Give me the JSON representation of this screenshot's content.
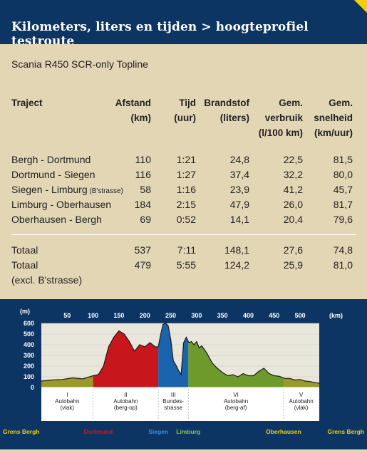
{
  "header": {
    "title": "Kilometers, liters en tijden > hoogteprofiel testroute"
  },
  "subtitle": "Scania R450 SCR-only Topline",
  "table": {
    "columns": [
      {
        "lines": [
          "Traject"
        ]
      },
      {
        "lines": [
          "Afstand",
          "(km)"
        ]
      },
      {
        "lines": [
          "Tijd",
          "(uur)"
        ]
      },
      {
        "lines": [
          "Brandstof",
          "(liters)"
        ]
      },
      {
        "lines": [
          "Gem.",
          "verbruik",
          "(l/100 km)"
        ]
      },
      {
        "lines": [
          "Gem.",
          "snelheid",
          "(km/uur)"
        ]
      }
    ],
    "rows": [
      {
        "name": "Bergh - Dortmund",
        "note": "",
        "afstand": "110",
        "tijd": "1:21",
        "brandstof": "24,8",
        "verbruik": "22,5",
        "snelheid": "81,5"
      },
      {
        "name": "Dortmund - Siegen",
        "note": "",
        "afstand": "116",
        "tijd": "1:27",
        "brandstof": "37,4",
        "verbruik": "32,2",
        "snelheid": "80,0"
      },
      {
        "name": "Siegen - Limburg",
        "note": "(B'strasse)",
        "afstand": "58",
        "tijd": "1:16",
        "brandstof": "23,9",
        "verbruik": "41,2",
        "snelheid": "45,7"
      },
      {
        "name": "Limburg - Oberhausen",
        "note": "",
        "afstand": "184",
        "tijd": "2:15",
        "brandstof": "47,9",
        "verbruik": "26,0",
        "snelheid": "81,7"
      },
      {
        "name": "Oberhausen - Bergh",
        "note": "",
        "afstand": "69",
        "tijd": "0:52",
        "brandstof": "14,1",
        "verbruik": "20,4",
        "snelheid": "79,6"
      }
    ],
    "totals": [
      {
        "name": "Totaal",
        "afstand": "537",
        "tijd": "7:11",
        "brandstof": "148,1",
        "verbruik": "27,6",
        "snelheid": "74,8"
      },
      {
        "name": "Totaal",
        "name2": "(excl. B'strasse)",
        "afstand": "479",
        "tijd": "5:55",
        "brandstof": "124,2",
        "verbruik": "25,9",
        "snelheid": "81,0"
      }
    ]
  },
  "chart_data": {
    "type": "area",
    "ylabel": "(m)",
    "xlabel": "(km)",
    "xlim": [
      0,
      537
    ],
    "ylim": [
      0,
      600
    ],
    "x_ticks": [
      50,
      100,
      150,
      200,
      250,
      300,
      350,
      400,
      450,
      500
    ],
    "y_ticks": [
      0,
      100,
      200,
      300,
      400,
      500,
      600
    ],
    "profile": {
      "x": [
        0,
        20,
        40,
        60,
        80,
        100,
        110,
        120,
        130,
        140,
        150,
        160,
        170,
        180,
        190,
        200,
        210,
        220,
        226,
        230,
        235,
        240,
        245,
        250,
        255,
        260,
        265,
        270,
        275,
        280,
        285,
        290,
        295,
        300,
        305,
        310,
        320,
        330,
        340,
        350,
        360,
        370,
        380,
        390,
        400,
        410,
        420,
        430,
        440,
        450,
        460,
        470,
        480,
        490,
        500,
        510,
        520,
        530,
        537
      ],
      "y": [
        60,
        70,
        75,
        90,
        80,
        110,
        120,
        200,
        380,
        470,
        530,
        500,
        430,
        340,
        400,
        380,
        420,
        380,
        380,
        480,
        590,
        600,
        580,
        450,
        250,
        210,
        160,
        120,
        420,
        470,
        420,
        430,
        400,
        430,
        370,
        390,
        320,
        230,
        180,
        140,
        110,
        120,
        100,
        130,
        110,
        110,
        150,
        180,
        130,
        110,
        105,
        85,
        85,
        70,
        75,
        60,
        55,
        45,
        40
      ]
    },
    "segments": [
      {
        "name": "Autobahn (vlak)",
        "x0": 0,
        "x1": 100,
        "color": "#9a9a2a"
      },
      {
        "name": "Autobahn (berg-op)",
        "x0": 100,
        "x1": 226,
        "color": "#c8161d"
      },
      {
        "name": "Bundesstrasse",
        "x0": 226,
        "x1": 284,
        "color": "#1a63ad"
      },
      {
        "name": "Autobahn (berg-af)",
        "x0": 284,
        "x1": 468,
        "color": "#6e9a2b"
      },
      {
        "name": "Autobahn (vlak)",
        "x0": 468,
        "x1": 537,
        "color": "#9a9a2a"
      }
    ],
    "zones": [
      {
        "numeral": "I",
        "lines": [
          "Autobahn",
          "(vlak)"
        ],
        "x": 50
      },
      {
        "numeral": "II",
        "lines": [
          "Autobahn",
          "(berg-op)"
        ],
        "x": 163
      },
      {
        "numeral": "III",
        "lines": [
          "Bundes-",
          "strasse"
        ],
        "x": 255
      },
      {
        "numeral": "VI",
        "lines": [
          "Autobahn",
          "(berg-af)"
        ],
        "x": 376
      },
      {
        "numeral": "V",
        "lines": [
          "Autobahn",
          "(vlak)"
        ],
        "x": 502
      }
    ],
    "places": [
      {
        "name": "Grens Bergh",
        "x": 0,
        "color": "#f5d000"
      },
      {
        "name": "Dortmund",
        "x": 110,
        "color": "#d4141b"
      },
      {
        "name": "Siegen",
        "x": 226,
        "color": "#3a8fe0"
      },
      {
        "name": "Limburg",
        "x": 284,
        "color": "#8ec63f"
      },
      {
        "name": "Oberhausen",
        "x": 468,
        "color": "#f5d000"
      },
      {
        "name": "Grens Bergh",
        "x": 537,
        "color": "#f5d000"
      }
    ]
  }
}
